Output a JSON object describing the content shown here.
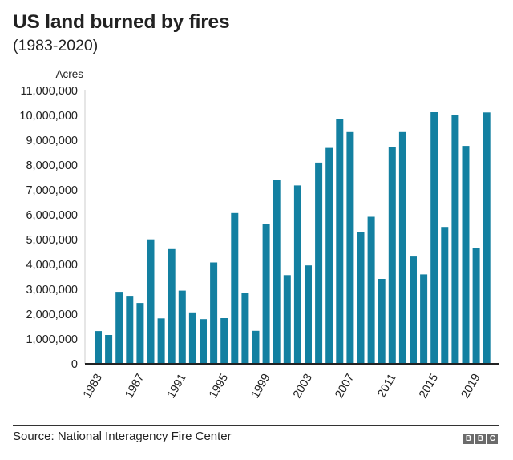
{
  "header": {
    "title": "US land burned by fires",
    "subtitle": "(1983-2020)"
  },
  "footer": {
    "source": "Source: National Interagency Fire Center",
    "logo": [
      "B",
      "B",
      "C"
    ]
  },
  "colors": {
    "bar": "#1380A1",
    "axis": "#222222",
    "vaxis": "#cccccc"
  },
  "chart_data": {
    "type": "bar",
    "title": "US land burned by fires",
    "subtitle": "(1983-2020)",
    "xlabel": "",
    "ylabel": "Acres",
    "ylim": [
      0,
      11000000
    ],
    "yticks": [
      0,
      1000000,
      2000000,
      3000000,
      4000000,
      5000000,
      6000000,
      7000000,
      8000000,
      9000000,
      10000000,
      11000000
    ],
    "ytick_labels": [
      "0",
      "1,000,000",
      "2,000,000",
      "3,000,000",
      "4,000,000",
      "5,000,000",
      "6,000,000",
      "7,000,000",
      "8,000,000",
      "9,000,000",
      "10,000,000",
      "11,000,000"
    ],
    "xtick_labels": [
      "1983",
      "1987",
      "1991",
      "1995",
      "1999",
      "2003",
      "2007",
      "2011",
      "2015",
      "2019"
    ],
    "grid": false,
    "legend": null,
    "categories": [
      "1983",
      "1984",
      "1985",
      "1986",
      "1987",
      "1988",
      "1989",
      "1990",
      "1991",
      "1992",
      "1993",
      "1994",
      "1995",
      "1996",
      "1997",
      "1998",
      "1999",
      "2000",
      "2001",
      "2002",
      "2003",
      "2004",
      "2005",
      "2006",
      "2007",
      "2008",
      "2009",
      "2010",
      "2011",
      "2012",
      "2013",
      "2014",
      "2015",
      "2016",
      "2017",
      "2018",
      "2019",
      "2020"
    ],
    "values": [
      1320000,
      1160000,
      2900000,
      2740000,
      2450000,
      5010000,
      1830000,
      4620000,
      2950000,
      2070000,
      1800000,
      4080000,
      1840000,
      6070000,
      2860000,
      1330000,
      5630000,
      7390000,
      3570000,
      7180000,
      3960000,
      8100000,
      8690000,
      9870000,
      9330000,
      5290000,
      5920000,
      3420000,
      8710000,
      9330000,
      4320000,
      3600000,
      10130000,
      5510000,
      10030000,
      8770000,
      4660000,
      10120000
    ],
    "source": "Source: National Interagency Fire Center"
  }
}
